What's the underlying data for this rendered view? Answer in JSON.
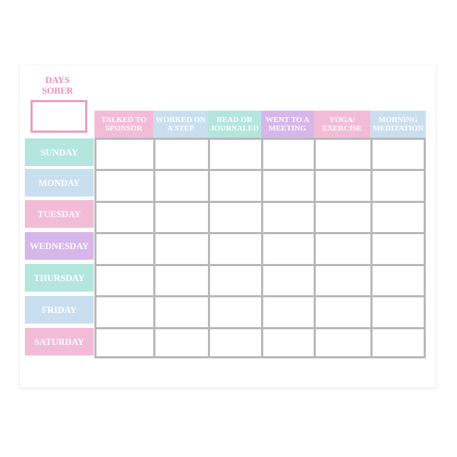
{
  "days_sober": {
    "label_line1": "DAYS",
    "label_line2": "SOBER"
  },
  "columns": [
    {
      "label": "TALKED TO SPONSOR",
      "color": "#f3bcd6"
    },
    {
      "label": "WORKED ON A STEP",
      "color": "#c9dff0"
    },
    {
      "label": "READ OR JOURNALED",
      "color": "#b4e6dd"
    },
    {
      "label": "WENT TO A MEETING",
      "color": "#d7b6ea"
    },
    {
      "label": "YOGA/ EXERCISE",
      "color": "#f3bcd6"
    },
    {
      "label": "MORNING MEDITATION",
      "color": "#c9dff0"
    }
  ],
  "days": [
    {
      "label": "SUNDAY",
      "color": "#b4e6dd"
    },
    {
      "label": "MONDAY",
      "color": "#c9dff0"
    },
    {
      "label": "TUESDAY",
      "color": "#f3bcd6"
    },
    {
      "label": "WEDNESDAY",
      "color": "#d7b6ea"
    },
    {
      "label": "THURSDAY",
      "color": "#b4e6dd"
    },
    {
      "label": "FRIDAY",
      "color": "#c9dff0"
    },
    {
      "label": "SATURDAY",
      "color": "#f3bcd6"
    }
  ]
}
